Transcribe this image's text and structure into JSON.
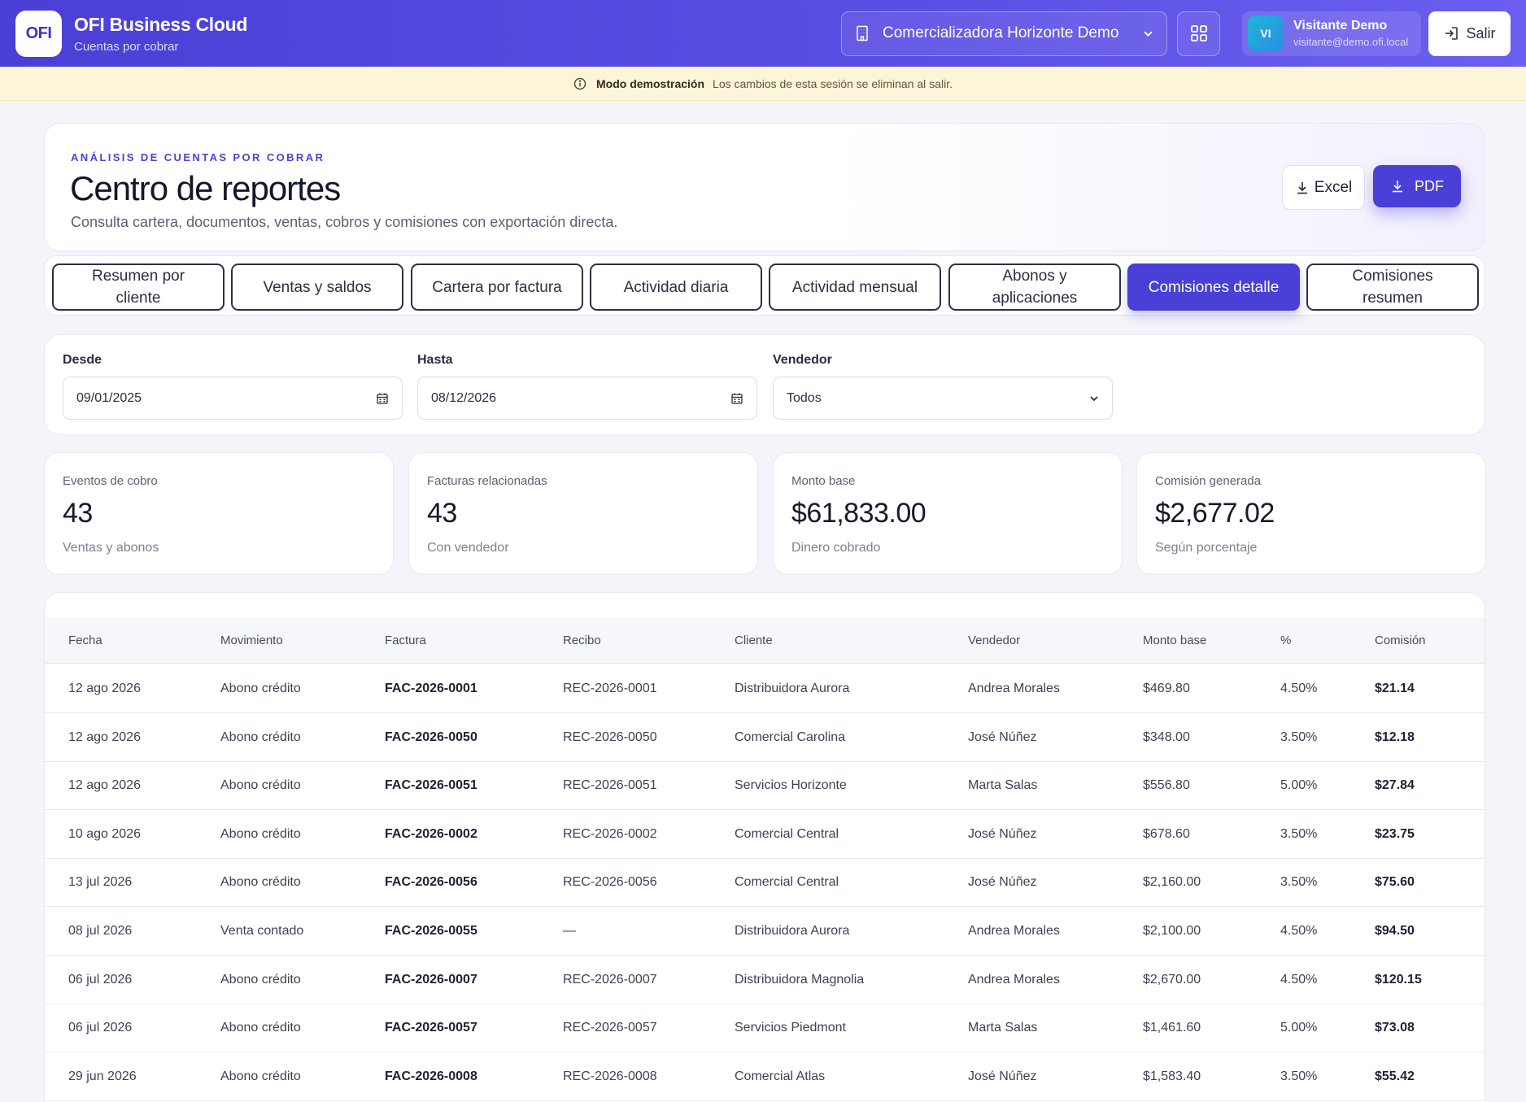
{
  "header": {
    "logo": "OFI",
    "title": "OFI Business Cloud",
    "subtitle": "Cuentas por cobrar",
    "company": "Comercializadora Horizonte Demo",
    "user": {
      "initials": "VI",
      "name": "Visitante Demo",
      "email": "visitante@demo.ofi.local"
    },
    "logout_label": "Salir"
  },
  "banner": {
    "title": "Modo demostración",
    "text": "Los cambios de esta sesión se eliminan al salir."
  },
  "page": {
    "eyebrow": "ANÁLISIS DE CUENTAS POR COBRAR",
    "title": "Centro de reportes",
    "description": "Consulta cartera, documentos, ventas, cobros y comisiones con exportación directa.",
    "excel_label": "Excel",
    "pdf_label": "PDF"
  },
  "tabs": [
    {
      "label": "Resumen por cliente",
      "active": false
    },
    {
      "label": "Ventas y saldos",
      "active": false
    },
    {
      "label": "Cartera por factura",
      "active": false
    },
    {
      "label": "Actividad diaria",
      "active": false
    },
    {
      "label": "Actividad mensual",
      "active": false
    },
    {
      "label": "Abonos y aplicaciones",
      "active": false
    },
    {
      "label": "Comisiones detalle",
      "active": true
    },
    {
      "label": "Comisiones resumen",
      "active": false
    }
  ],
  "filters": {
    "from": {
      "label": "Desde",
      "value": "09/01/2025"
    },
    "to": {
      "label": "Hasta",
      "value": "08/12/2026"
    },
    "seller": {
      "label": "Vendedor",
      "value": "Todos"
    }
  },
  "kpis": [
    {
      "label": "Eventos de cobro",
      "value": "43",
      "sub": "Ventas y abonos"
    },
    {
      "label": "Facturas relacionadas",
      "value": "43",
      "sub": "Con vendedor"
    },
    {
      "label": "Monto base",
      "value": "$61,833.00",
      "sub": "Dinero cobrado"
    },
    {
      "label": "Comisión generada",
      "value": "$2,677.02",
      "sub": "Según porcentaje"
    }
  ],
  "table": {
    "columns": [
      "Fecha",
      "Movimiento",
      "Factura",
      "Recibo",
      "Cliente",
      "Vendedor",
      "Monto base",
      "%",
      "Comisión"
    ],
    "rows": [
      [
        "12 ago 2026",
        "Abono crédito",
        "FAC-2026-0001",
        "REC-2026-0001",
        "Distribuidora Aurora",
        "Andrea Morales",
        "$469.80",
        "4.50%",
        "$21.14"
      ],
      [
        "12 ago 2026",
        "Abono crédito",
        "FAC-2026-0050",
        "REC-2026-0050",
        "Comercial Carolina",
        "José Núñez",
        "$348.00",
        "3.50%",
        "$12.18"
      ],
      [
        "12 ago 2026",
        "Abono crédito",
        "FAC-2026-0051",
        "REC-2026-0051",
        "Servicios Horizonte",
        "Marta Salas",
        "$556.80",
        "5.00%",
        "$27.84"
      ],
      [
        "10 ago 2026",
        "Abono crédito",
        "FAC-2026-0002",
        "REC-2026-0002",
        "Comercial Central",
        "José Núñez",
        "$678.60",
        "3.50%",
        "$23.75"
      ],
      [
        "13 jul 2026",
        "Abono crédito",
        "FAC-2026-0056",
        "REC-2026-0056",
        "Comercial Central",
        "José Núñez",
        "$2,160.00",
        "3.50%",
        "$75.60"
      ],
      [
        "08 jul 2026",
        "Venta contado",
        "FAC-2026-0055",
        "—",
        "Distribuidora Aurora",
        "Andrea Morales",
        "$2,100.00",
        "4.50%",
        "$94.50"
      ],
      [
        "06 jul 2026",
        "Abono crédito",
        "FAC-2026-0007",
        "REC-2026-0007",
        "Distribuidora Magnolia",
        "Andrea Morales",
        "$2,670.00",
        "4.50%",
        "$120.15"
      ],
      [
        "06 jul 2026",
        "Abono crédito",
        "FAC-2026-0057",
        "REC-2026-0057",
        "Servicios Piedmont",
        "Marta Salas",
        "$1,461.60",
        "5.00%",
        "$73.08"
      ],
      [
        "29 jun 2026",
        "Abono crédito",
        "FAC-2026-0008",
        "REC-2026-0008",
        "Comercial Atlas",
        "José Núñez",
        "$1,583.40",
        "3.50%",
        "$55.42"
      ]
    ]
  }
}
